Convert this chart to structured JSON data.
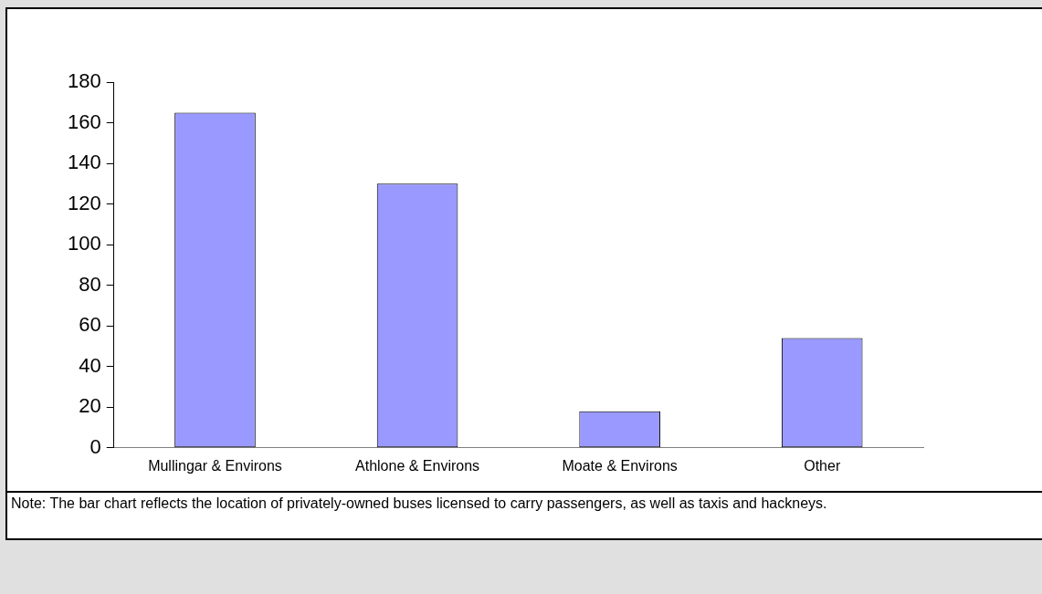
{
  "chart_data": {
    "type": "bar",
    "categories": [
      "Mullingar & Environs",
      "Athlone & Environs",
      "Moate & Environs",
      "Other"
    ],
    "values": [
      165,
      130,
      18,
      54
    ],
    "color": "#9999ff",
    "ylim": [
      0,
      180
    ],
    "yticks": [
      0,
      20,
      40,
      60,
      80,
      100,
      120,
      140,
      160,
      180
    ],
    "grid": false,
    "legend": false,
    "annotations": [
      "Note: The bar chart reflects the location of privately-owned buses licensed to carry passengers, as well as taxis and hackneys."
    ]
  }
}
